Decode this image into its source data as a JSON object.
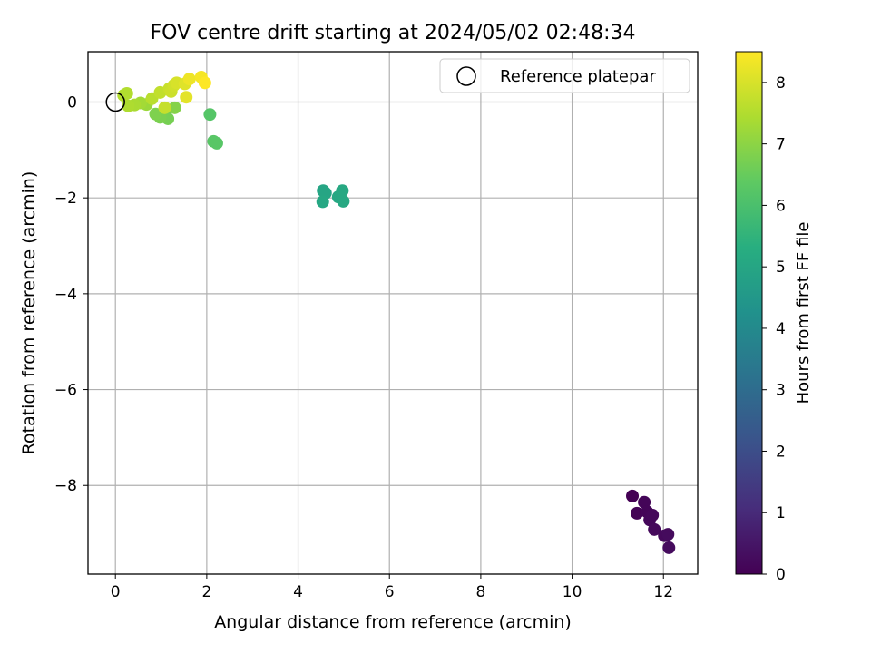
{
  "chart_data": {
    "type": "scatter",
    "title": "FOV centre drift starting at 2024/05/02 02:48:34",
    "xlabel": "Angular distance from reference (arcmin)",
    "ylabel": "Rotation from reference (arcmin)",
    "xlim": [
      -0.6,
      12.75
    ],
    "ylim": [
      -9.85,
      1.05
    ],
    "xticks": [
      0,
      2,
      4,
      6,
      8,
      10,
      12
    ],
    "yticks": [
      0,
      -2,
      -4,
      -6,
      -8
    ],
    "grid": true,
    "legend": {
      "placement": "top-right",
      "entries": [
        "Reference platepar"
      ]
    },
    "reference_point": {
      "x": 0,
      "y": 0
    },
    "colorbar": {
      "label": "Hours from first FF file",
      "range": [
        0,
        8.5
      ],
      "ticks": [
        0,
        1,
        2,
        3,
        4,
        5,
        6,
        7,
        8
      ],
      "colormap": "viridis"
    },
    "series": [
      {
        "points": [
          {
            "x": 11.32,
            "y": -8.22,
            "h": 0.0
          },
          {
            "x": 11.42,
            "y": -8.58,
            "h": 0.05
          },
          {
            "x": 11.58,
            "y": -8.35,
            "h": 0.1
          },
          {
            "x": 11.64,
            "y": -8.55,
            "h": 0.1
          },
          {
            "x": 11.7,
            "y": -8.72,
            "h": 0.15
          },
          {
            "x": 11.76,
            "y": -8.62,
            "h": 0.15
          },
          {
            "x": 11.8,
            "y": -8.92,
            "h": 0.2
          },
          {
            "x": 12.02,
            "y": -9.05,
            "h": 0.2
          },
          {
            "x": 12.1,
            "y": -9.02,
            "h": 0.25
          },
          {
            "x": 12.12,
            "y": -9.3,
            "h": 0.25
          },
          {
            "x": 4.55,
            "y": -1.85,
            "h": 5.0
          },
          {
            "x": 4.6,
            "y": -1.9,
            "h": 5.0
          },
          {
            "x": 4.54,
            "y": -2.08,
            "h": 5.05
          },
          {
            "x": 4.88,
            "y": -1.98,
            "h": 5.05
          },
          {
            "x": 4.97,
            "y": -1.85,
            "h": 5.1
          },
          {
            "x": 4.99,
            "y": -2.07,
            "h": 5.1
          },
          {
            "x": 2.07,
            "y": -0.26,
            "h": 6.2
          },
          {
            "x": 2.15,
            "y": -0.82,
            "h": 6.25
          },
          {
            "x": 2.22,
            "y": -0.86,
            "h": 6.25
          },
          {
            "x": 1.1,
            "y": -0.3,
            "h": 6.7
          },
          {
            "x": 1.15,
            "y": -0.35,
            "h": 6.7
          },
          {
            "x": 0.98,
            "y": -0.32,
            "h": 6.75
          },
          {
            "x": 0.88,
            "y": -0.25,
            "h": 6.8
          },
          {
            "x": 1.3,
            "y": -0.12,
            "h": 6.9
          },
          {
            "x": 0.68,
            "y": -0.05,
            "h": 7.2
          },
          {
            "x": 0.55,
            "y": -0.02,
            "h": 7.3
          },
          {
            "x": 0.42,
            "y": -0.06,
            "h": 7.4
          },
          {
            "x": 0.28,
            "y": -0.08,
            "h": 7.45
          },
          {
            "x": 0.18,
            "y": 0.14,
            "h": 7.5
          },
          {
            "x": 0.25,
            "y": 0.18,
            "h": 7.5
          },
          {
            "x": 0.8,
            "y": 0.07,
            "h": 7.6
          },
          {
            "x": 0.98,
            "y": 0.2,
            "h": 7.7
          },
          {
            "x": 1.08,
            "y": -0.12,
            "h": 7.75
          },
          {
            "x": 1.18,
            "y": 0.28,
            "h": 7.8
          },
          {
            "x": 1.22,
            "y": 0.22,
            "h": 7.85
          },
          {
            "x": 1.28,
            "y": 0.35,
            "h": 7.9
          },
          {
            "x": 1.34,
            "y": 0.4,
            "h": 8.0
          },
          {
            "x": 1.52,
            "y": 0.38,
            "h": 8.1
          },
          {
            "x": 1.55,
            "y": 0.1,
            "h": 8.15
          },
          {
            "x": 1.62,
            "y": 0.48,
            "h": 8.3
          },
          {
            "x": 1.88,
            "y": 0.52,
            "h": 8.4
          },
          {
            "x": 1.96,
            "y": 0.4,
            "h": 8.5
          }
        ]
      }
    ]
  }
}
